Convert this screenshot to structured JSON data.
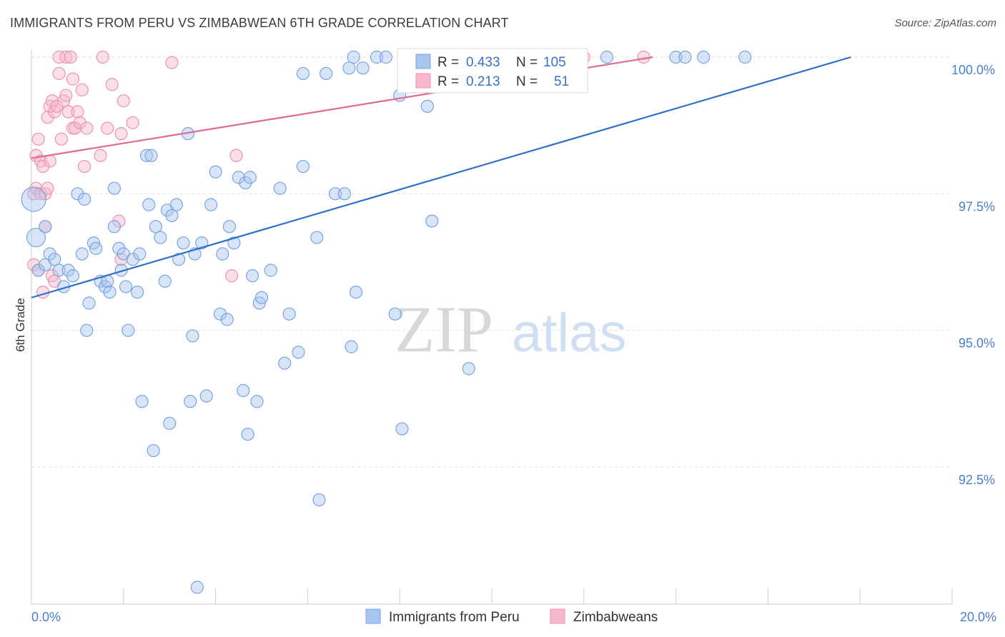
{
  "title": "IMMIGRANTS FROM PERU VS ZIMBABWEAN 6TH GRADE CORRELATION CHART",
  "source": "Source: ZipAtlas.com",
  "watermark": {
    "zip": "ZIP",
    "atlas": "atlas"
  },
  "colors": {
    "peru": "#a8c5f0",
    "peru_stroke": "#7aa4e0",
    "peru_line": "#2f6fca",
    "zim": "#f7b8cc",
    "zim_stroke": "#ee92b0",
    "zim_line": "#e06a94",
    "grid": "#e2e2e2",
    "axis_text": "#4a7fd0"
  },
  "legend": {
    "rows": [
      {
        "r_label": "R =",
        "r_value": "0.433",
        "n_label": "N =",
        "n_value": "105"
      },
      {
        "r_label": "R =",
        "r_value": "0.213",
        "n_label": "N =",
        "n_value": "51"
      }
    ]
  },
  "chart_data": {
    "type": "scatter",
    "title": "IMMIGRANTS FROM PERU VS ZIMBABWEAN 6TH GRADE CORRELATION CHART",
    "xlabel": "",
    "ylabel": "6th Grade",
    "xlim": [
      0,
      20
    ],
    "ylim": [
      90.2,
      100.25
    ],
    "x_tick_labels": [
      {
        "value": 0,
        "label": "0.0%"
      },
      {
        "value": 20,
        "label": "20.0%"
      }
    ],
    "y_tick_labels": [
      {
        "value": 92.5,
        "label": "92.5%"
      },
      {
        "value": 95.0,
        "label": "95.0%"
      },
      {
        "value": 97.5,
        "label": "97.5%"
      },
      {
        "value": 100.0,
        "label": "100.0%"
      }
    ],
    "grid": true,
    "legend_position": "top-center",
    "series": [
      {
        "name": "Immigrants from Peru",
        "color": "#a8c5f0",
        "trend": {
          "x": [
            0,
            17.8
          ],
          "y": [
            95.6,
            100.0
          ]
        },
        "points": [
          [
            0.05,
            97.4
          ],
          [
            0.1,
            96.7
          ],
          [
            0.15,
            96.1
          ],
          [
            0.3,
            96.9
          ],
          [
            0.3,
            96.2
          ],
          [
            0.4,
            96.4
          ],
          [
            0.5,
            96.3
          ],
          [
            0.6,
            96.1
          ],
          [
            0.7,
            95.8
          ],
          [
            0.8,
            96.1
          ],
          [
            0.9,
            96.0
          ],
          [
            1.0,
            97.5
          ],
          [
            1.1,
            96.4
          ],
          [
            1.15,
            97.4
          ],
          [
            1.2,
            95.0
          ],
          [
            1.25,
            95.5
          ],
          [
            1.35,
            96.6
          ],
          [
            1.4,
            96.5
          ],
          [
            1.5,
            95.9
          ],
          [
            1.6,
            95.8
          ],
          [
            1.65,
            95.9
          ],
          [
            1.7,
            95.7
          ],
          [
            1.8,
            96.9
          ],
          [
            1.8,
            97.6
          ],
          [
            1.9,
            96.5
          ],
          [
            1.95,
            96.1
          ],
          [
            2.0,
            96.4
          ],
          [
            2.05,
            95.8
          ],
          [
            2.1,
            95.0
          ],
          [
            2.2,
            96.3
          ],
          [
            2.3,
            95.7
          ],
          [
            2.35,
            96.4
          ],
          [
            2.4,
            93.7
          ],
          [
            2.5,
            98.2
          ],
          [
            2.55,
            97.3
          ],
          [
            2.6,
            98.2
          ],
          [
            2.65,
            92.8
          ],
          [
            2.7,
            96.9
          ],
          [
            2.8,
            96.7
          ],
          [
            2.9,
            95.9
          ],
          [
            2.95,
            97.2
          ],
          [
            3.0,
            93.3
          ],
          [
            3.05,
            97.1
          ],
          [
            3.15,
            97.3
          ],
          [
            3.2,
            96.3
          ],
          [
            3.3,
            96.6
          ],
          [
            3.4,
            98.6
          ],
          [
            3.45,
            93.7
          ],
          [
            3.5,
            94.9
          ],
          [
            3.55,
            96.4
          ],
          [
            3.6,
            90.3
          ],
          [
            3.7,
            96.6
          ],
          [
            3.8,
            93.8
          ],
          [
            3.9,
            97.3
          ],
          [
            4.0,
            97.9
          ],
          [
            4.1,
            95.3
          ],
          [
            4.15,
            96.4
          ],
          [
            4.25,
            95.2
          ],
          [
            4.3,
            96.9
          ],
          [
            4.4,
            96.6
          ],
          [
            4.5,
            97.8
          ],
          [
            4.6,
            93.9
          ],
          [
            4.65,
            97.7
          ],
          [
            4.7,
            93.1
          ],
          [
            4.75,
            97.8
          ],
          [
            4.8,
            96.0
          ],
          [
            4.9,
            93.7
          ],
          [
            4.95,
            95.5
          ],
          [
            5.0,
            95.6
          ],
          [
            5.2,
            96.1
          ],
          [
            5.4,
            97.6
          ],
          [
            5.5,
            94.4
          ],
          [
            5.6,
            95.3
          ],
          [
            5.8,
            94.6
          ],
          [
            5.9,
            98.0
          ],
          [
            5.9,
            99.7
          ],
          [
            6.2,
            96.7
          ],
          [
            6.25,
            91.9
          ],
          [
            6.4,
            99.7
          ],
          [
            6.6,
            97.5
          ],
          [
            6.8,
            97.5
          ],
          [
            6.9,
            99.8
          ],
          [
            6.95,
            94.7
          ],
          [
            7.0,
            100.0
          ],
          [
            7.05,
            95.7
          ],
          [
            7.2,
            99.8
          ],
          [
            7.5,
            100.0
          ],
          [
            7.7,
            100.0
          ],
          [
            7.9,
            95.3
          ],
          [
            8.0,
            99.3
          ],
          [
            8.05,
            93.2
          ],
          [
            8.4,
            100.0
          ],
          [
            8.6,
            99.1
          ],
          [
            8.7,
            97.0
          ],
          [
            8.8,
            100.0
          ],
          [
            9.3,
            100.0
          ],
          [
            9.5,
            94.3
          ],
          [
            10.3,
            100.0
          ],
          [
            11.0,
            100.0
          ],
          [
            11.2,
            99.6
          ],
          [
            11.5,
            100.0
          ],
          [
            12.5,
            100.0
          ],
          [
            14.0,
            100.0
          ],
          [
            14.2,
            100.0
          ],
          [
            14.6,
            100.0
          ],
          [
            15.5,
            100.0
          ]
        ]
      },
      {
        "name": "Zimbabweans",
        "color": "#f7b8cc",
        "trend": {
          "x": [
            0,
            13.5
          ],
          "y": [
            98.15,
            100.0
          ]
        },
        "points": [
          [
            0.05,
            97.5
          ],
          [
            0.05,
            96.2
          ],
          [
            0.1,
            97.6
          ],
          [
            0.1,
            98.2
          ],
          [
            0.15,
            98.5
          ],
          [
            0.15,
            96.1
          ],
          [
            0.2,
            98.1
          ],
          [
            0.2,
            97.5
          ],
          [
            0.25,
            98.0
          ],
          [
            0.25,
            95.7
          ],
          [
            0.3,
            97.5
          ],
          [
            0.3,
            96.9
          ],
          [
            0.35,
            98.9
          ],
          [
            0.35,
            97.6
          ],
          [
            0.4,
            99.1
          ],
          [
            0.4,
            98.1
          ],
          [
            0.45,
            99.2
          ],
          [
            0.45,
            96.0
          ],
          [
            0.5,
            99.0
          ],
          [
            0.5,
            95.9
          ],
          [
            0.55,
            99.1
          ],
          [
            0.6,
            100.0
          ],
          [
            0.6,
            99.7
          ],
          [
            0.65,
            98.5
          ],
          [
            0.7,
            99.2
          ],
          [
            0.75,
            99.3
          ],
          [
            0.75,
            100.0
          ],
          [
            0.8,
            99.0
          ],
          [
            0.85,
            100.0
          ],
          [
            0.9,
            98.7
          ],
          [
            0.9,
            99.6
          ],
          [
            0.95,
            98.7
          ],
          [
            1.0,
            99.0
          ],
          [
            1.05,
            98.8
          ],
          [
            1.1,
            99.4
          ],
          [
            1.15,
            98.0
          ],
          [
            1.2,
            98.7
          ],
          [
            1.5,
            98.2
          ],
          [
            1.55,
            100.0
          ],
          [
            1.65,
            98.7
          ],
          [
            1.75,
            99.5
          ],
          [
            1.9,
            97.0
          ],
          [
            1.95,
            98.6
          ],
          [
            1.95,
            96.3
          ],
          [
            2.0,
            99.2
          ],
          [
            2.2,
            98.8
          ],
          [
            3.05,
            99.9
          ],
          [
            4.35,
            96.0
          ],
          [
            4.45,
            98.2
          ],
          [
            12.0,
            100.0
          ],
          [
            13.3,
            100.0
          ]
        ]
      }
    ]
  },
  "bottom_legend": {
    "items": [
      {
        "label": "Immigrants from Peru"
      },
      {
        "label": "Zimbabweans"
      }
    ]
  }
}
